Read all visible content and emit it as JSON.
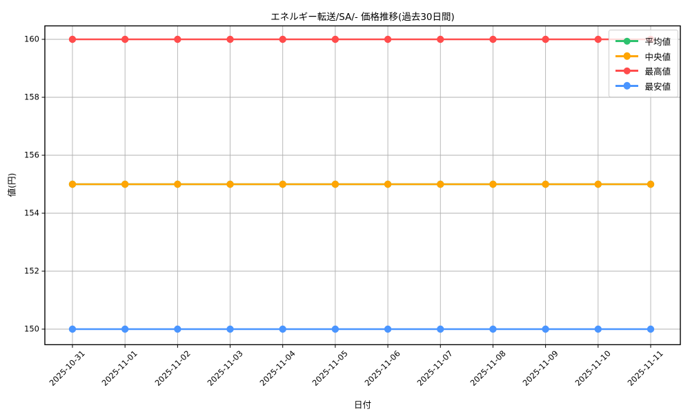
{
  "chart_data": {
    "type": "line",
    "title": "エネルギー転送/SA/- 価格推移(過去30日間)",
    "xlabel": "日付",
    "ylabel": "値(円)",
    "x": [
      "2025-10-31",
      "2025-11-01",
      "2025-11-02",
      "2025-11-03",
      "2025-11-04",
      "2025-11-05",
      "2025-11-06",
      "2025-11-07",
      "2025-11-08",
      "2025-11-09",
      "2025-11-10",
      "2025-11-11"
    ],
    "yticks": [
      150,
      152,
      154,
      156,
      158,
      160
    ],
    "ylim": [
      149.45,
      160.5
    ],
    "grid": true,
    "legend_position": "upper right",
    "series": [
      {
        "name": "平均値",
        "color": "#2dc26e",
        "values": [
          155,
          155,
          155,
          155,
          155,
          155,
          155,
          155,
          155,
          155,
          155,
          155
        ]
      },
      {
        "name": "中央値",
        "color": "#ffa502",
        "values": [
          155,
          155,
          155,
          155,
          155,
          155,
          155,
          155,
          155,
          155,
          155,
          155
        ]
      },
      {
        "name": "最高値",
        "color": "#ff4c4c",
        "values": [
          160,
          160,
          160,
          160,
          160,
          160,
          160,
          160,
          160,
          160,
          160,
          160
        ]
      },
      {
        "name": "最安値",
        "color": "#4a95ff",
        "values": [
          150,
          150,
          150,
          150,
          150,
          150,
          150,
          150,
          150,
          150,
          150,
          150
        ]
      }
    ],
    "colors": {
      "grid": "#b0b0b0",
      "spine": "#000000",
      "background": "#ffffff"
    }
  }
}
